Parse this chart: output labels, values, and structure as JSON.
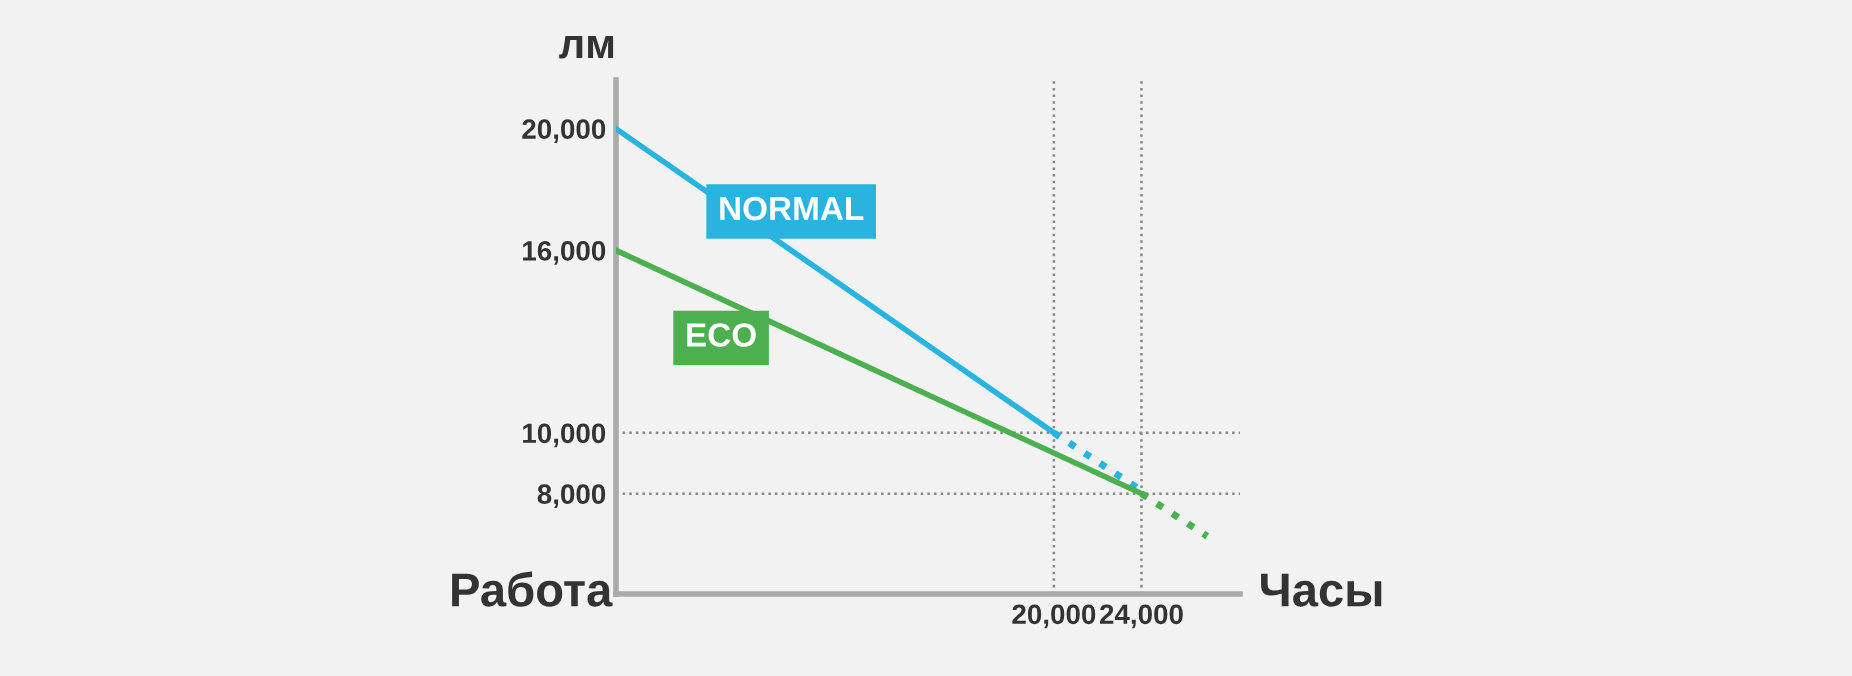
{
  "chart_data": {
    "type": "line",
    "xlabel": "Часы",
    "ylabel": "лм",
    "annotations": [
      "Работа"
    ],
    "xlim": [
      0,
      28500
    ],
    "ylim": [
      4700,
      21600
    ],
    "xticks": [
      {
        "value": 20000,
        "label": "20,000"
      },
      {
        "value": 24000,
        "label": "24,000"
      }
    ],
    "yticks": [
      {
        "value": 8000,
        "label": "8,000"
      },
      {
        "value": 10000,
        "label": "10,000"
      },
      {
        "value": 16000,
        "label": "16,000"
      },
      {
        "value": 20000,
        "label": "20,000"
      }
    ],
    "grid": false,
    "legend": false,
    "marker": "none",
    "series": [
      {
        "name": "NORMAL",
        "color": "#29b4e0",
        "x": [
          0,
          20000
        ],
        "values": [
          20000,
          10000
        ],
        "line_style": "solid"
      },
      {
        "color": "#29b4e0",
        "x": [
          20000,
          24200
        ],
        "values": [
          10000,
          8000
        ],
        "line_style": "dotted"
      },
      {
        "name": "ECO",
        "color": "#4caf50",
        "x": [
          0,
          24000
        ],
        "values": [
          16000,
          8000
        ],
        "line_style": "solid"
      },
      {
        "color": "#4caf50",
        "x": [
          24000,
          27000
        ],
        "values": [
          8000,
          6600
        ],
        "line_style": "dotted"
      }
    ],
    "ref_lines": [
      {
        "axis": "x",
        "value": 20000,
        "color": "#888888",
        "line_style": "dotted"
      },
      {
        "axis": "x",
        "value": 24000,
        "color": "#888888",
        "line_style": "dotted"
      },
      {
        "axis": "y",
        "value": 10000,
        "color": "#888888",
        "line_style": "dotted"
      },
      {
        "axis": "y",
        "value": 8000,
        "color": "#888888",
        "line_style": "dotted"
      }
    ]
  }
}
